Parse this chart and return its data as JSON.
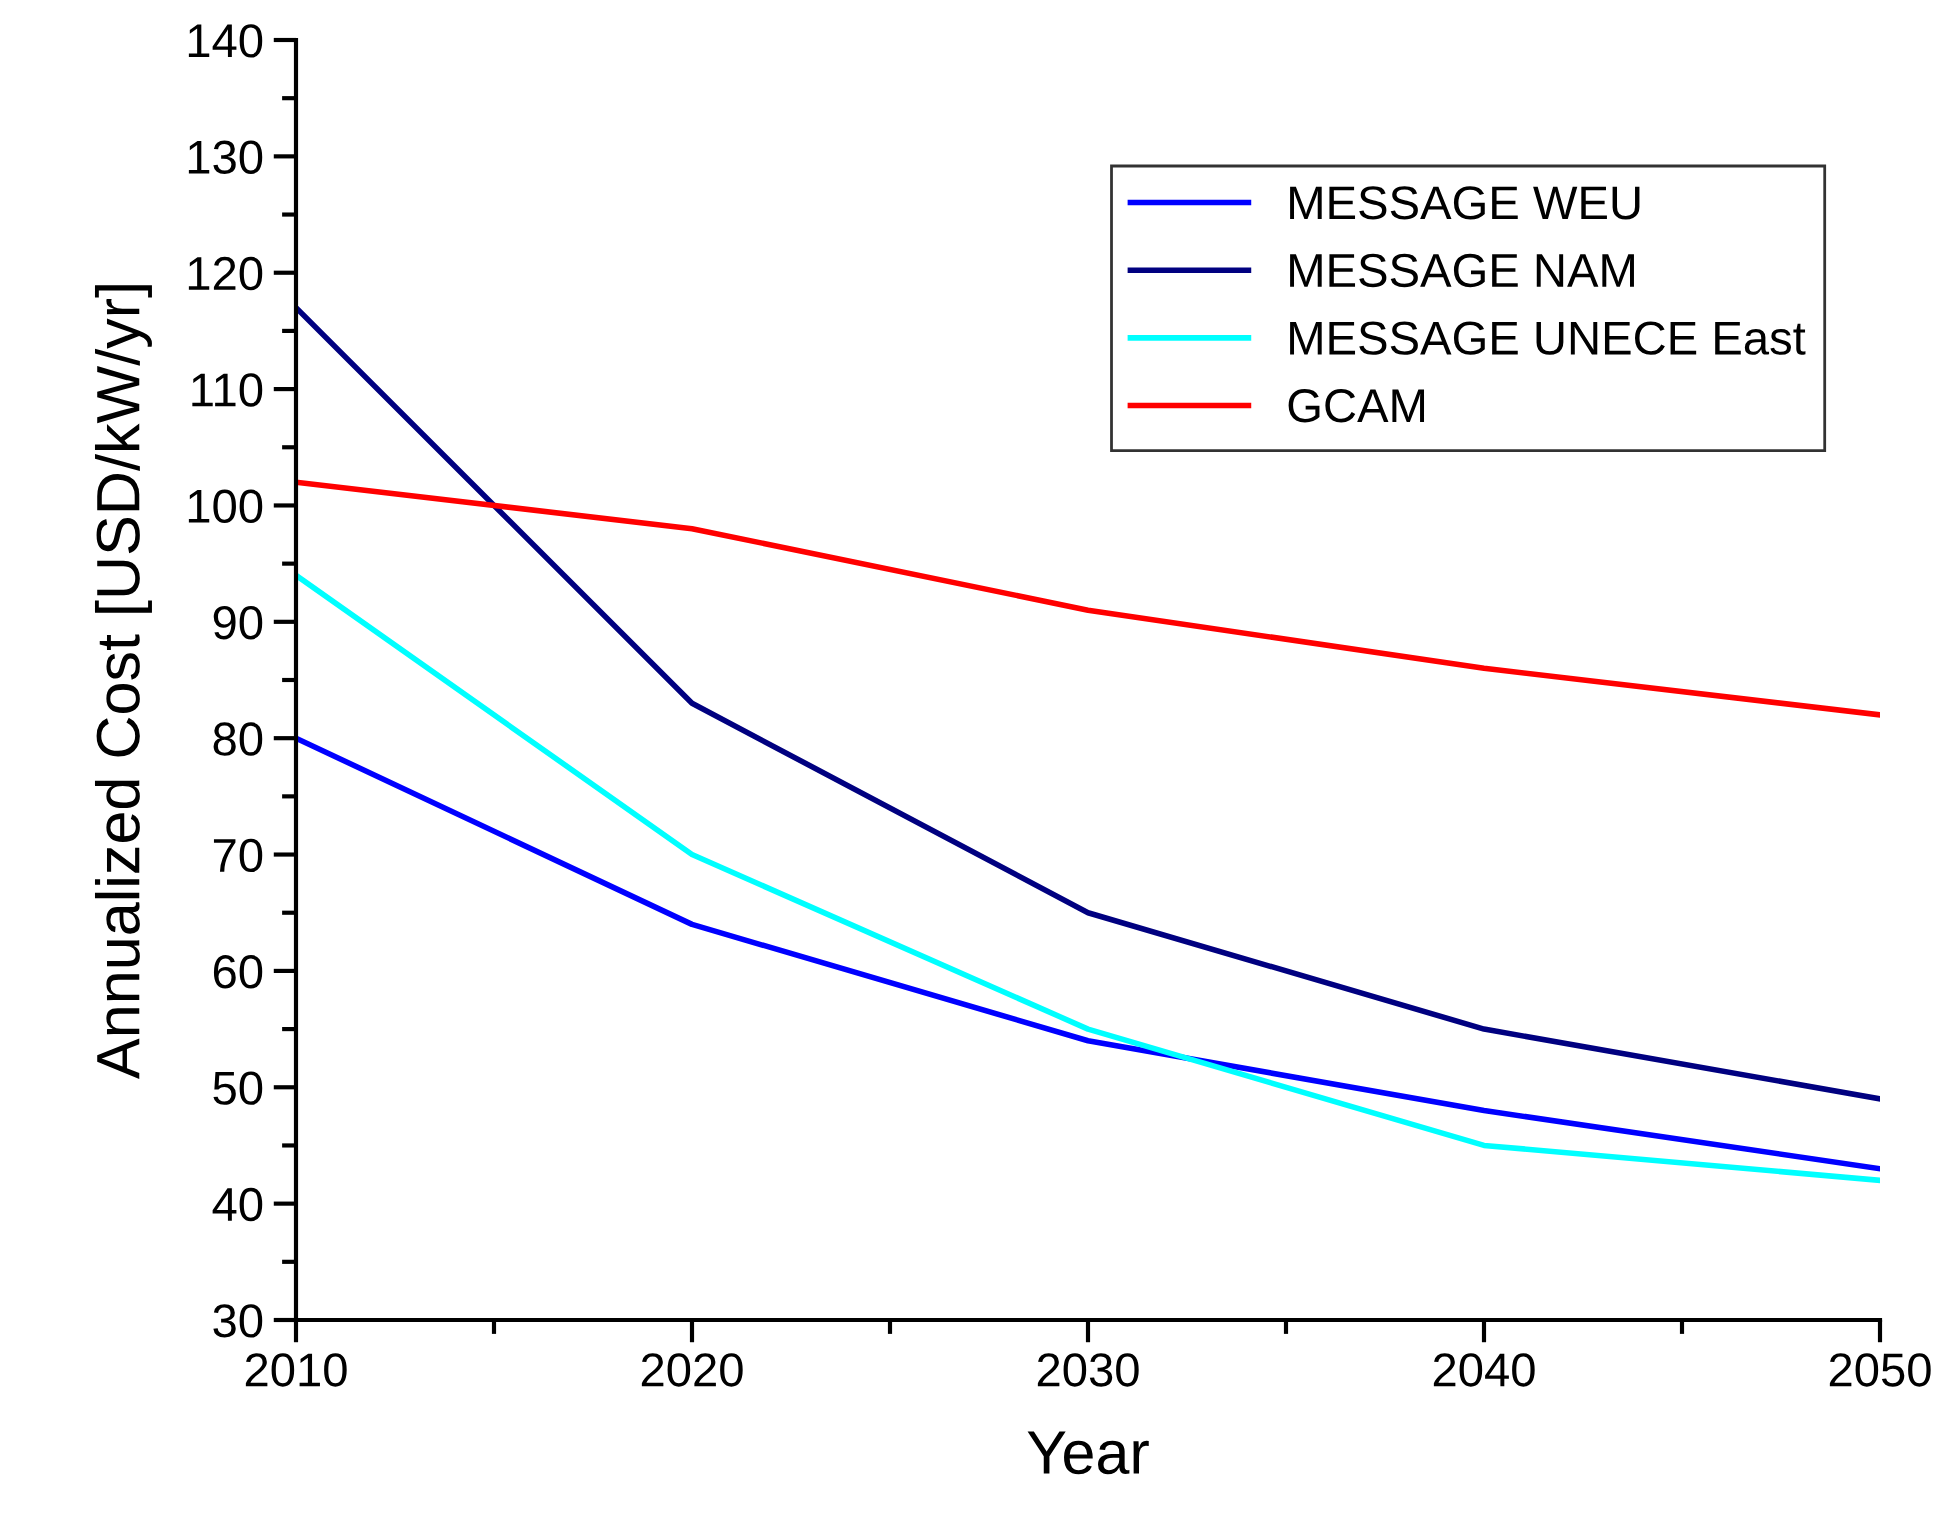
{
  "chart_data": {
    "type": "line",
    "xlabel": "Year",
    "ylabel": "Annualized Cost [USD/kW/yr]",
    "x": [
      2010,
      2020,
      2030,
      2040,
      2050
    ],
    "series": [
      {
        "name": "MESSAGE WEU",
        "color": "#0000ff",
        "values": [
          80,
          64,
          54,
          48,
          43
        ]
      },
      {
        "name": "MESSAGE NAM",
        "color": "#000080",
        "values": [
          117,
          83,
          65,
          55,
          49
        ]
      },
      {
        "name": "MESSAGE UNECE East",
        "color": "#00ffff",
        "values": [
          94,
          70,
          55,
          45,
          42
        ]
      },
      {
        "name": "GCAM",
        "color": "#ff0000",
        "values": [
          102,
          98,
          91,
          86,
          82
        ]
      }
    ],
    "xlim": [
      2010,
      2050
    ],
    "xticks": [
      2010,
      2020,
      2030,
      2040,
      2050
    ],
    "ylim": [
      30,
      140
    ],
    "yticks": [
      30,
      40,
      50,
      60,
      70,
      80,
      90,
      100,
      110,
      120,
      130,
      140
    ],
    "grid": false,
    "legend": "top right",
    "marker": "none",
    "line_style": "solid"
  }
}
